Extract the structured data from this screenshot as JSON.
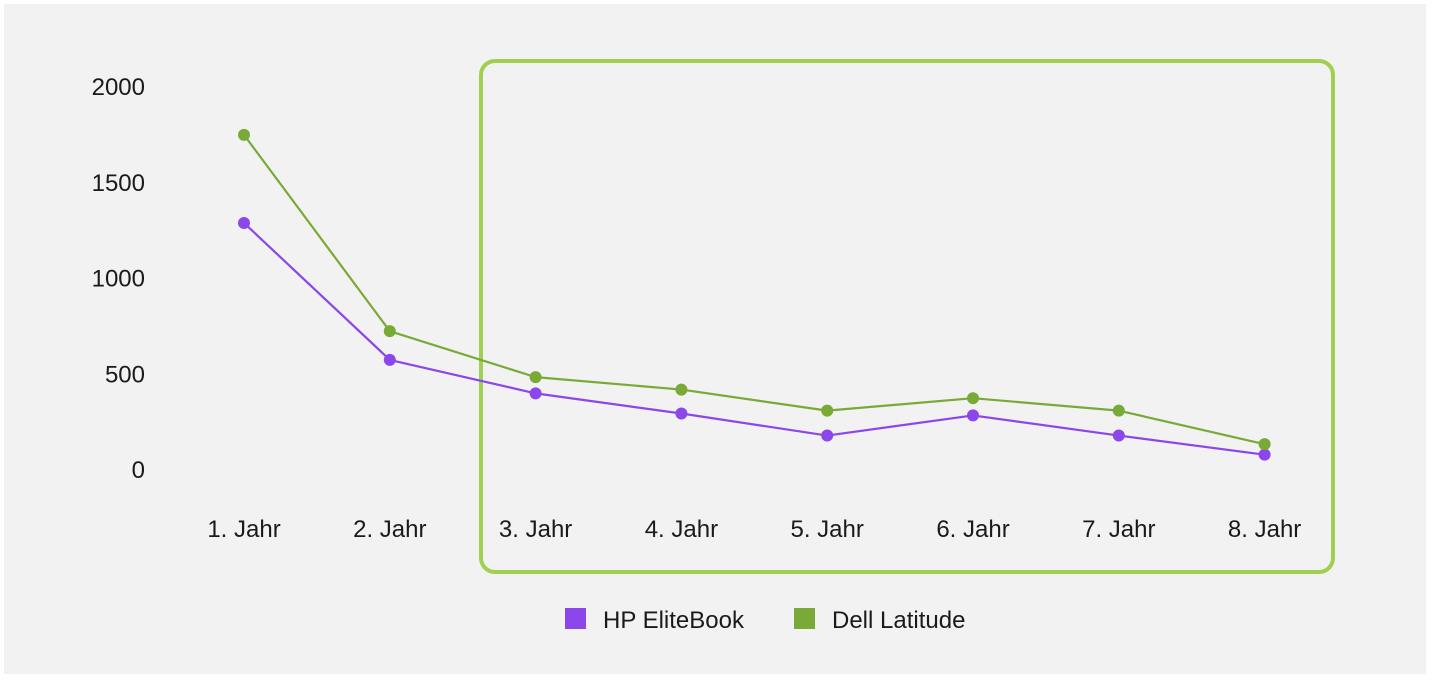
{
  "colors": {
    "hp": "#8b46ec",
    "dell": "#79a936",
    "highlight": "#9fd04f",
    "background": "#f2f2f2"
  },
  "chart_data": {
    "type": "line",
    "categories": [
      "1. Jahr",
      "2. Jahr",
      "3. Jahr",
      "4. Jahr",
      "5. Jahr",
      "6. Jahr",
      "7. Jahr",
      "8. Jahr"
    ],
    "series": [
      {
        "name": "HP EliteBook",
        "color": "#8b46ec",
        "values": [
          1290,
          575,
          400,
          295,
          180,
          285,
          180,
          80
        ]
      },
      {
        "name": "Dell Latitude",
        "color": "#79a936",
        "values": [
          1750,
          725,
          485,
          420,
          310,
          375,
          310,
          135
        ]
      }
    ],
    "y_ticks": [
      "0",
      "500",
      "1000",
      "1500",
      "2000"
    ],
    "ylim": [
      0,
      2000
    ],
    "grid": false,
    "legend_position": "bottom",
    "highlight_range": [
      "3. Jahr",
      "8. Jahr"
    ]
  }
}
